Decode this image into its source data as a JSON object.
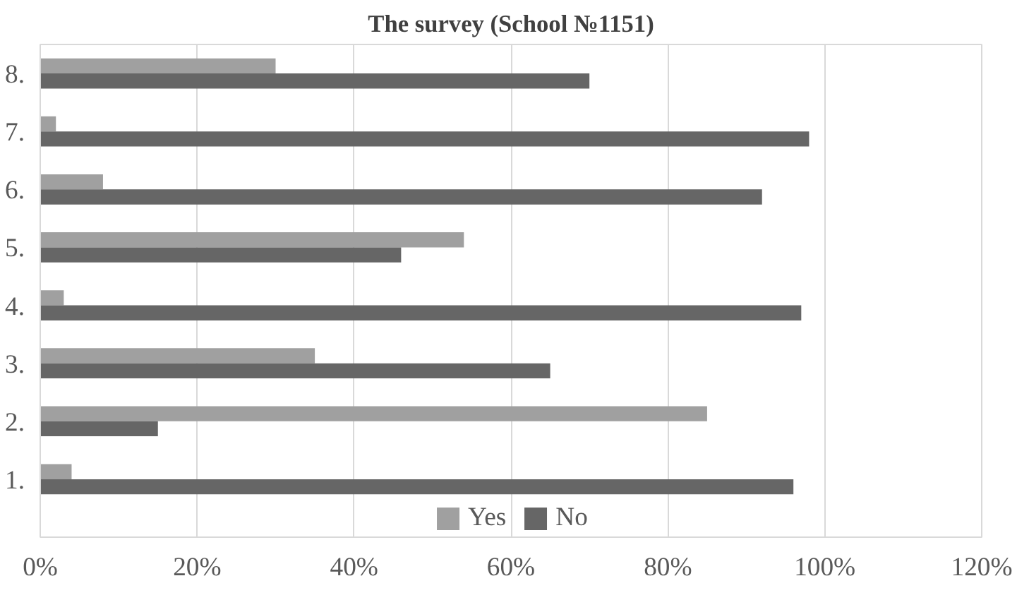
{
  "chart_data": {
    "type": "bar",
    "orientation": "horizontal",
    "title": "The survey (School №1151)",
    "categories": [
      "8.",
      "7.",
      "6.",
      "5.",
      "4.",
      "3.",
      "2.",
      "1."
    ],
    "series": [
      {
        "name": "Yes",
        "color": "#a0a0a0",
        "values": [
          30,
          2,
          8,
          54,
          3,
          35,
          85,
          4
        ]
      },
      {
        "name": "No",
        "color": "#666666",
        "values": [
          70,
          98,
          92,
          46,
          97,
          65,
          15,
          96
        ]
      }
    ],
    "xlim": [
      0,
      120
    ],
    "xticks": [
      {
        "value": 0,
        "label": "0%"
      },
      {
        "value": 20,
        "label": "20%"
      },
      {
        "value": 40,
        "label": "40%"
      },
      {
        "value": 60,
        "label": "60%"
      },
      {
        "value": 80,
        "label": "80%"
      },
      {
        "value": 100,
        "label": "100%"
      },
      {
        "value": 120,
        "label": "120%"
      }
    ],
    "grid": "x",
    "legend": "bottom"
  }
}
